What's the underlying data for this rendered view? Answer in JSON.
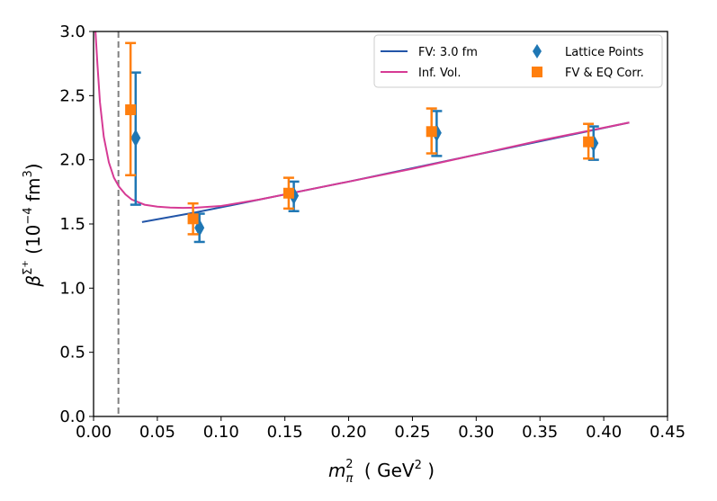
{
  "chart_data": {
    "type": "scatter",
    "xlabel": {
      "base": "m",
      "sub": "π",
      "sup": "2",
      "unit": "( GeV",
      "unit_sup": "2",
      "unit_end": " )"
    },
    "ylabel": {
      "base": "β",
      "sup": "Σ",
      "sup2": "+",
      "unit_open": "(10",
      "unit_sup": "−4",
      "unit_mid": " fm",
      "unit_sup2": "3",
      "unit_close": ")"
    },
    "xlim": [
      0.0,
      0.45
    ],
    "ylim": [
      0.0,
      3.0
    ],
    "x_ticks": [
      "0.00",
      "0.05",
      "0.10",
      "0.15",
      "0.20",
      "0.25",
      "0.30",
      "0.35",
      "0.40",
      "0.45"
    ],
    "y_ticks": [
      "0.0",
      "0.5",
      "1.0",
      "1.5",
      "2.0",
      "2.5",
      "3.0"
    ],
    "grid": false,
    "legend_position": "top-right",
    "vertical_reference_line": {
      "x": 0.0195,
      "style": "dashed",
      "color": "#808080"
    },
    "series": [
      {
        "name": "FV: 3.0 fm",
        "kind": "line",
        "color": "#2255a8",
        "points": [
          [
            0.038,
            1.515
          ],
          [
            0.08,
            1.59
          ],
          [
            0.15,
            1.73
          ],
          [
            0.2,
            1.83
          ],
          [
            0.3,
            2.04
          ],
          [
            0.42,
            2.29
          ]
        ]
      },
      {
        "name": "Inf. Vol.",
        "kind": "curve",
        "color": "#d63a94",
        "points": [
          [
            0.0015,
            3.0
          ],
          [
            0.003,
            2.75
          ],
          [
            0.005,
            2.45
          ],
          [
            0.008,
            2.18
          ],
          [
            0.012,
            1.98
          ],
          [
            0.016,
            1.86
          ],
          [
            0.02,
            1.79
          ],
          [
            0.025,
            1.73
          ],
          [
            0.03,
            1.69
          ],
          [
            0.04,
            1.65
          ],
          [
            0.05,
            1.635
          ],
          [
            0.06,
            1.628
          ],
          [
            0.07,
            1.625
          ],
          [
            0.08,
            1.627
          ],
          [
            0.1,
            1.64
          ],
          [
            0.13,
            1.69
          ],
          [
            0.16,
            1.75
          ],
          [
            0.2,
            1.83
          ],
          [
            0.25,
            1.93
          ],
          [
            0.3,
            2.04
          ],
          [
            0.35,
            2.15
          ],
          [
            0.4,
            2.25
          ],
          [
            0.42,
            2.29
          ]
        ]
      },
      {
        "name": "Lattice Points",
        "kind": "points",
        "marker": "diamond",
        "color": "#1f77b4",
        "points": [
          {
            "x": 0.033,
            "y": 2.17,
            "ylo": 1.65,
            "yhi": 2.68
          },
          {
            "x": 0.083,
            "y": 1.47,
            "ylo": 1.36,
            "yhi": 1.58
          },
          {
            "x": 0.157,
            "y": 1.72,
            "ylo": 1.6,
            "yhi": 1.83
          },
          {
            "x": 0.269,
            "y": 2.21,
            "ylo": 2.03,
            "yhi": 2.38
          },
          {
            "x": 0.392,
            "y": 2.13,
            "ylo": 2.0,
            "yhi": 2.26
          }
        ]
      },
      {
        "name": "FV & EQ Corr.",
        "kind": "points",
        "marker": "square",
        "color": "#ff7f0e",
        "points": [
          {
            "x": 0.029,
            "y": 2.39,
            "ylo": 1.88,
            "yhi": 2.91
          },
          {
            "x": 0.078,
            "y": 1.54,
            "ylo": 1.42,
            "yhi": 1.66
          },
          {
            "x": 0.153,
            "y": 1.74,
            "ylo": 1.62,
            "yhi": 1.86
          },
          {
            "x": 0.265,
            "y": 2.22,
            "ylo": 2.05,
            "yhi": 2.4
          },
          {
            "x": 0.388,
            "y": 2.14,
            "ylo": 2.01,
            "yhi": 2.28
          }
        ]
      }
    ]
  }
}
